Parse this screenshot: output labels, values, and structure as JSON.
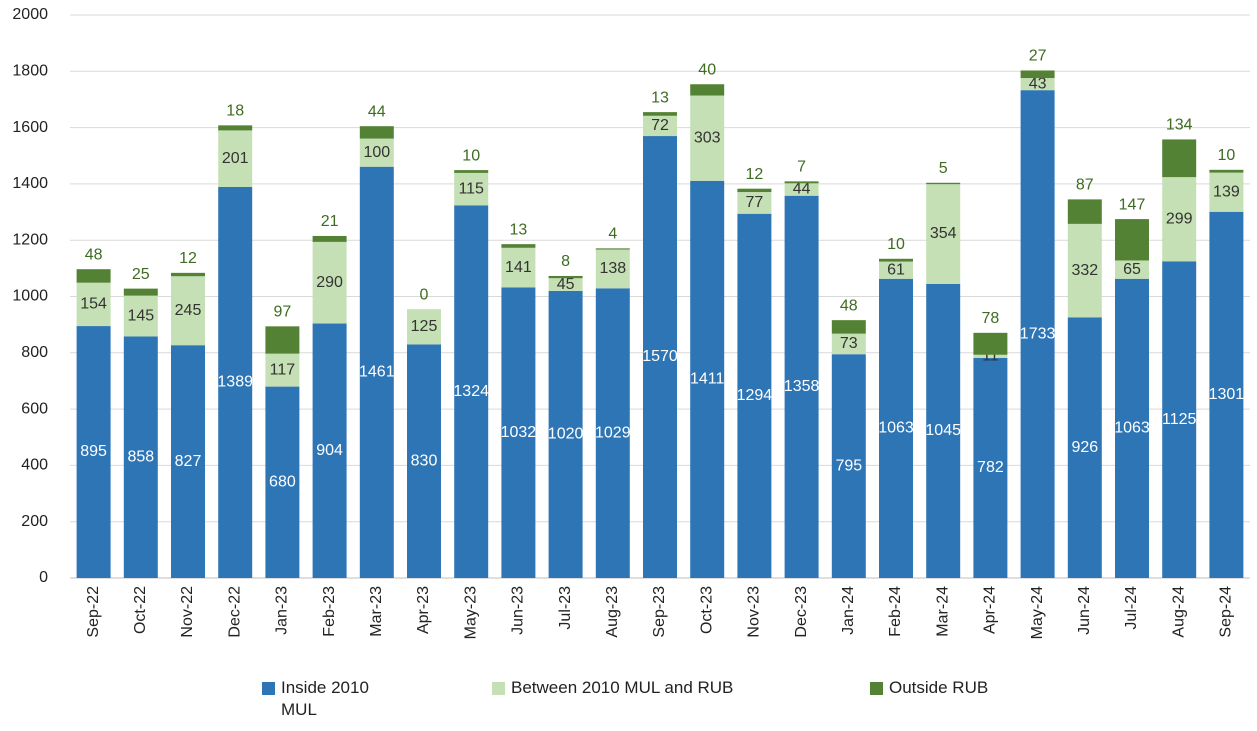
{
  "chart_data": {
    "type": "stacked-bar",
    "categories": [
      "Sep-22",
      "Oct-22",
      "Nov-22",
      "Dec-22",
      "Jan-23",
      "Feb-23",
      "Mar-23",
      "Apr-23",
      "May-23",
      "Jun-23",
      "Jul-23",
      "Aug-23",
      "Sep-23",
      "Oct-23",
      "Nov-23",
      "Dec-23",
      "Jan-24",
      "Feb-24",
      "Mar-24",
      "Apr-24",
      "May-24",
      "Jun-24",
      "Jul-24",
      "Aug-24",
      "Sep-24"
    ],
    "series": [
      {
        "name": "Inside 2010 MUL",
        "color": "#2e75b6",
        "values": [
          895,
          858,
          827,
          1389,
          680,
          904,
          1461,
          830,
          1324,
          1032,
          1020,
          1029,
          1570,
          1411,
          1294,
          1358,
          795,
          1063,
          1045,
          782,
          1733,
          926,
          1063,
          1125,
          1301
        ]
      },
      {
        "name": "Between 2010 MUL and RUB",
        "color": "#c5e0b4",
        "values": [
          154,
          145,
          245,
          201,
          117,
          290,
          100,
          125,
          115,
          141,
          45,
          138,
          72,
          303,
          77,
          44,
          73,
          61,
          354,
          11,
          43,
          332,
          65,
          299,
          139
        ]
      },
      {
        "name": "Outside RUB",
        "color": "#548235",
        "values": [
          48,
          25,
          12,
          18,
          97,
          21,
          44,
          0,
          10,
          13,
          8,
          4,
          13,
          40,
          12,
          7,
          48,
          10,
          5,
          78,
          27,
          87,
          147,
          134,
          10
        ]
      }
    ],
    "ylim": [
      0,
      2000
    ],
    "yticks": [
      0,
      200,
      400,
      600,
      800,
      1000,
      1200,
      1400,
      1600,
      1800,
      2000
    ],
    "grid": true,
    "legend": "bottom"
  }
}
